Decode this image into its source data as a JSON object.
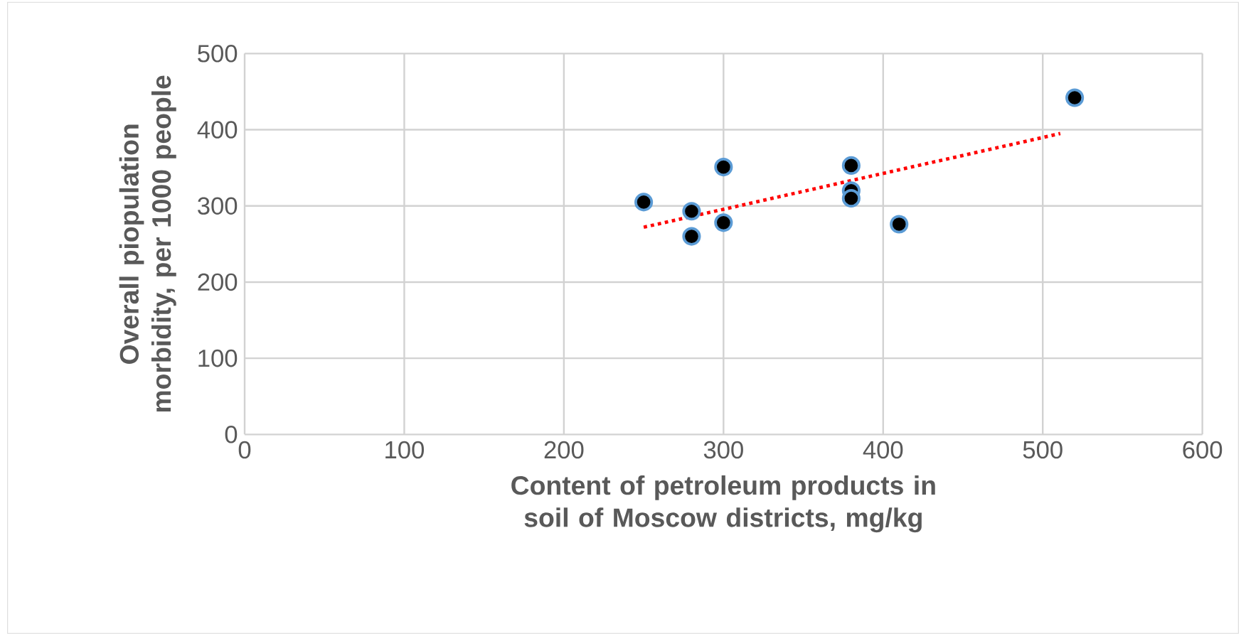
{
  "chart_data": {
    "type": "scatter",
    "xlabel": "Content of petroleum products in soil of Moscow districts, mg/kg",
    "ylabel": "Overall piopulation morbidity, per 1000 people",
    "xlim": [
      0,
      600
    ],
    "ylim": [
      0,
      500
    ],
    "xticks": [
      0,
      100,
      200,
      300,
      400,
      500,
      600
    ],
    "yticks": [
      0,
      100,
      200,
      300,
      400,
      500
    ],
    "grid": true,
    "marker": "circle",
    "series": [
      {
        "color": "#000000",
        "x": [
          250,
          280,
          280,
          300,
          300,
          380,
          380,
          380,
          410,
          520
        ],
        "values": [
          305,
          293,
          260,
          351,
          278,
          353,
          320,
          310,
          276,
          442
        ]
      },
      {
        "type": "line",
        "color": "#ff0000",
        "line_style": "dotted",
        "marker": "none",
        "x": [
          250,
          511
        ],
        "values": [
          272,
          395
        ]
      }
    ]
  }
}
